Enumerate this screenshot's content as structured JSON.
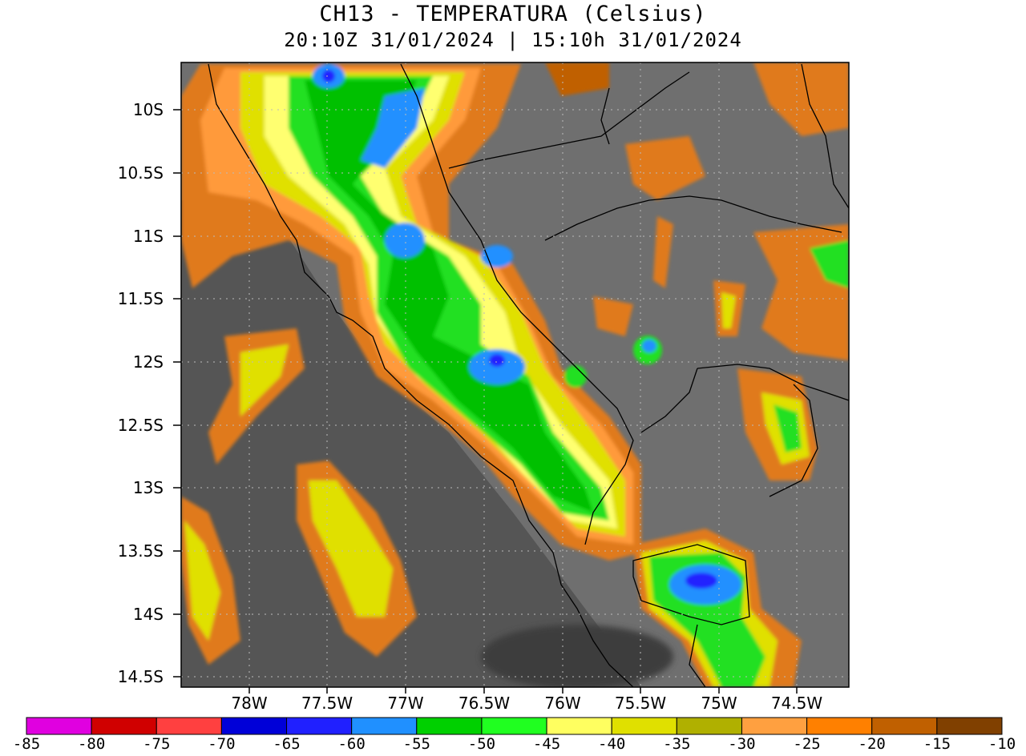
{
  "title": {
    "line1": "CH13 - TEMPERATURA (Celsius)",
    "line2": "20:10Z 31/01/2024 | 15:10h 31/01/2024"
  },
  "axes": {
    "lat_labels": [
      "10S",
      "10.5S",
      "11S",
      "11.5S",
      "12S",
      "12.5S",
      "13S",
      "13.5S",
      "14S",
      "14.5S"
    ],
    "lon_labels": [
      "78W",
      "77.5W",
      "77W",
      "76.5W",
      "76W",
      "75.5W",
      "75W",
      "74.5W"
    ]
  },
  "colorbar": {
    "colors": [
      "#e000e0",
      "#d00000",
      "#ff4040",
      "#0000d8",
      "#2020ff",
      "#2090ff",
      "#00d000",
      "#20ff20",
      "#ffff60",
      "#e0e000",
      "#b0b000",
      "#ffa040",
      "#ff8000",
      "#c06000",
      "#804000"
    ],
    "labels": [
      "-85",
      "-80",
      "-75",
      "-70",
      "-65",
      "-60",
      "-55",
      "-50",
      "-45",
      "-40",
      "-35",
      "-30",
      "-25",
      "-20",
      "-15",
      "-10"
    ]
  },
  "map_layers": {
    "background": "#6e6e6e",
    "ocean_dark": "#4a4a4a",
    "cloud_bands": [
      "#e07a1e",
      "#ff9a3a",
      "#e0e000",
      "#ffff70",
      "#20e020",
      "#00c000",
      "#2090ff",
      "#2020ff"
    ]
  }
}
